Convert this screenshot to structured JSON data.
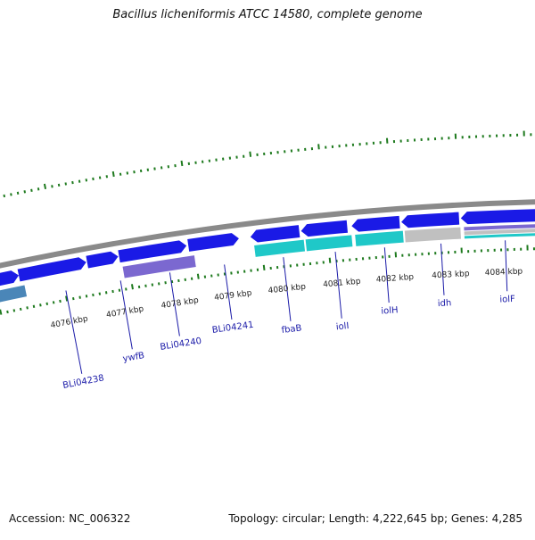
{
  "title": "Bacillus licheniformis ATCC 14580, complete genome",
  "accession": "Accession: NC_006322",
  "summary": "Topology: circular; Length: 4,222,645 bp; Genes: 4,285",
  "colors": {
    "backbone": "#8a8a8a",
    "tick": "#1e7a1e",
    "forward_gene": "#1a1ae6",
    "reverse_cyan": "#1fc8c8",
    "reverse_purple": "#7b68d0",
    "reverse_grey": "#c0c0c0",
    "reverse_steel": "#4a86b8",
    "label": "#1a1aa8"
  },
  "scale_labels": [
    "4076 kbp",
    "4077 kbp",
    "4078 kbp",
    "4079 kbp",
    "4080 kbp",
    "4081 kbp",
    "4082 kbp",
    "4083 kbp",
    "4084 kbp"
  ],
  "gene_labels": [
    "BLi04238",
    "ywfB",
    "BLi04240",
    "BLi04241",
    "fbaB",
    "iolI",
    "iolH",
    "idh",
    "iolF"
  ]
}
